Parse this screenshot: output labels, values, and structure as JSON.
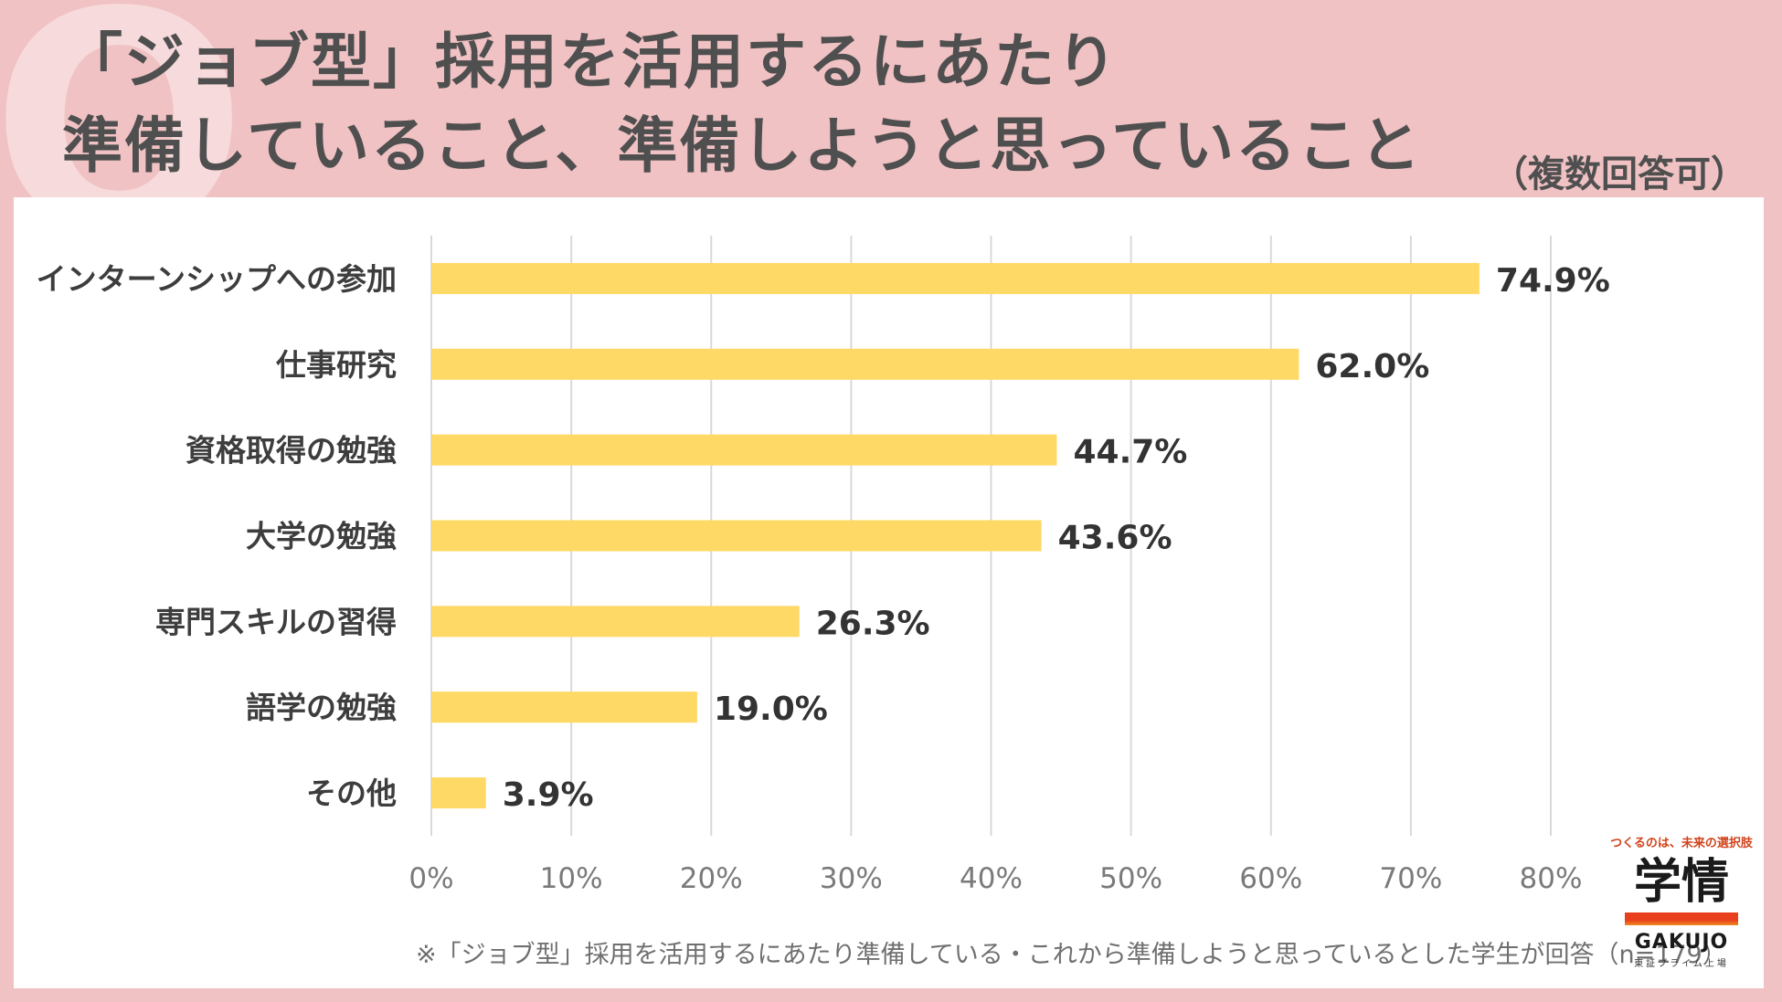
{
  "header": {
    "q_mark": "Q",
    "title_line1": "「ジョブ型」採用を活用するにあたり",
    "title_line2": "準備していること、準備しようと思っていること",
    "multi_answer": "（複数回答可）"
  },
  "chart_data": {
    "type": "bar",
    "orientation": "horizontal",
    "categories": [
      "インターンシップへの参加",
      "仕事研究",
      "資格取得の勉強",
      "大学の勉強",
      "専門スキルの習得",
      "語学の勉強",
      "その他"
    ],
    "values": [
      74.9,
      62.0,
      44.7,
      43.6,
      26.3,
      19.0,
      3.9
    ],
    "value_labels": [
      "74.9%",
      "62.0%",
      "44.7%",
      "43.6%",
      "26.3%",
      "19.0%",
      "3.9%"
    ],
    "xticks": [
      "0%",
      "10%",
      "20%",
      "30%",
      "40%",
      "50%",
      "60%",
      "70%",
      "80%"
    ],
    "xlim": [
      0,
      80
    ],
    "grid": true,
    "bar_color": "#ffd966",
    "title": "「ジョブ型」採用を活用するにあたり準備していること、準備しようと思っていること"
  },
  "footnote": "※「ジョブ型」採用を活用するにあたり準備している・これから準備しようと思っているとした学生が回答（n=179）",
  "logo": {
    "tagline": "つくるのは、未来の選択肢",
    "name_jp": "学情",
    "name_en": "GAKUJO",
    "sub": "東証プライム上場"
  }
}
